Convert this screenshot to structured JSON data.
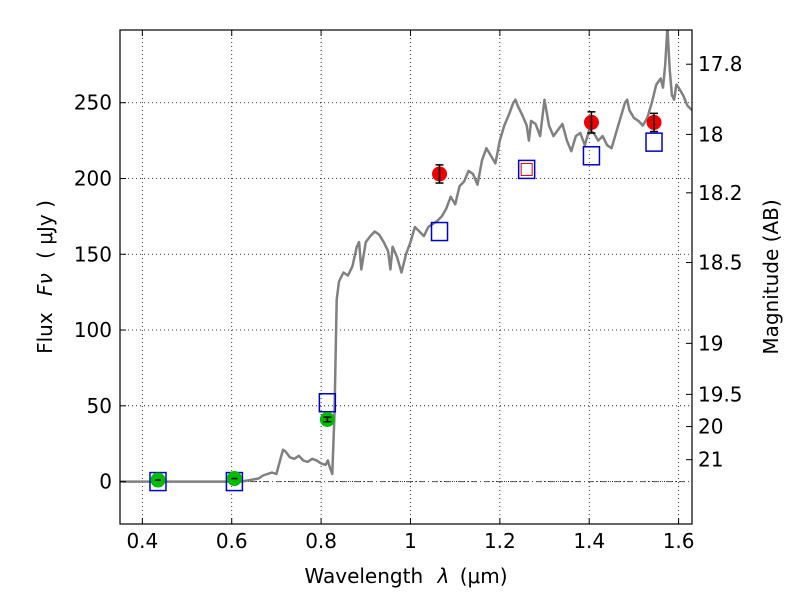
{
  "chart_data": {
    "type": "scatter",
    "xlabel_prefix": "Wavelength",
    "xlabel_symbol": "λ",
    "xlabel_unit": "(μm)",
    "ylabel_prefix": "Flux",
    "ylabel_symbol": "Fν",
    "ylabel_unit": "( μJy )",
    "y2label": "Magnitude (AB)",
    "xlim": [
      0.35,
      1.63
    ],
    "ylim": [
      -28,
      298
    ],
    "grid": true,
    "x_ticks": [
      0.4,
      0.6,
      0.8,
      1.0,
      1.2,
      1.4,
      1.6
    ],
    "x_tick_labels": [
      "0.4",
      "0.6",
      "0.8",
      "1",
      "1.2",
      "1.4",
      "1.6"
    ],
    "y_ticks": [
      0,
      50,
      100,
      150,
      200,
      250
    ],
    "y_tick_labels": [
      "0",
      "50",
      "100",
      "150",
      "200",
      "250"
    ],
    "mag_ticks": [
      17.8,
      18,
      18.2,
      18.5,
      19,
      19.5,
      20,
      21
    ],
    "mag_tick_labels": [
      "17.8",
      "18",
      "18.2",
      "18.5",
      "19",
      "19.5",
      "20",
      "21"
    ],
    "colors": {
      "spectrum": "#808080",
      "model_box": "#0000cc",
      "model_box_inner": "#cc0000",
      "observed_nir": "#ee0000",
      "observed_optical": "#00bb00",
      "zero_line": "#555555"
    },
    "spectrum": [
      [
        0.35,
        0
      ],
      [
        0.55,
        0
      ],
      [
        0.62,
        0
      ],
      [
        0.64,
        1
      ],
      [
        0.66,
        2
      ],
      [
        0.67,
        4
      ],
      [
        0.68,
        5
      ],
      [
        0.69,
        6
      ],
      [
        0.7,
        5
      ],
      [
        0.71,
        16
      ],
      [
        0.715,
        21
      ],
      [
        0.72,
        20
      ],
      [
        0.73,
        16
      ],
      [
        0.74,
        15
      ],
      [
        0.75,
        17
      ],
      [
        0.76,
        14
      ],
      [
        0.77,
        13
      ],
      [
        0.78,
        15
      ],
      [
        0.79,
        14
      ],
      [
        0.8,
        12
      ],
      [
        0.81,
        11
      ],
      [
        0.815,
        14
      ],
      [
        0.82,
        9
      ],
      [
        0.825,
        5
      ],
      [
        0.83,
        45
      ],
      [
        0.835,
        120
      ],
      [
        0.84,
        132
      ],
      [
        0.85,
        138
      ],
      [
        0.86,
        136
      ],
      [
        0.87,
        142
      ],
      [
        0.88,
        155
      ],
      [
        0.885,
        158
      ],
      [
        0.89,
        140
      ],
      [
        0.9,
        158
      ],
      [
        0.91,
        162
      ],
      [
        0.92,
        165
      ],
      [
        0.93,
        163
      ],
      [
        0.94,
        158
      ],
      [
        0.95,
        152
      ],
      [
        0.955,
        140
      ],
      [
        0.96,
        155
      ],
      [
        0.97,
        148
      ],
      [
        0.98,
        138
      ],
      [
        0.99,
        150
      ],
      [
        1.0,
        158
      ],
      [
        1.01,
        168
      ],
      [
        1.02,
        165
      ],
      [
        1.03,
        162
      ],
      [
        1.04,
        168
      ],
      [
        1.05,
        170
      ],
      [
        1.06,
        172
      ],
      [
        1.07,
        175
      ],
      [
        1.08,
        180
      ],
      [
        1.09,
        188
      ],
      [
        1.1,
        183
      ],
      [
        1.11,
        195
      ],
      [
        1.12,
        198
      ],
      [
        1.13,
        205
      ],
      [
        1.14,
        203
      ],
      [
        1.15,
        196
      ],
      [
        1.16,
        212
      ],
      [
        1.17,
        220
      ],
      [
        1.18,
        215
      ],
      [
        1.19,
        210
      ],
      [
        1.2,
        225
      ],
      [
        1.21,
        235
      ],
      [
        1.22,
        242
      ],
      [
        1.23,
        250
      ],
      [
        1.235,
        252
      ],
      [
        1.24,
        248
      ],
      [
        1.25,
        242
      ],
      [
        1.26,
        235
      ],
      [
        1.265,
        225
      ],
      [
        1.27,
        238
      ],
      [
        1.28,
        236
      ],
      [
        1.29,
        228
      ],
      [
        1.3,
        252
      ],
      [
        1.31,
        235
      ],
      [
        1.32,
        228
      ],
      [
        1.33,
        232
      ],
      [
        1.34,
        236
      ],
      [
        1.35,
        225
      ],
      [
        1.36,
        218
      ],
      [
        1.37,
        228
      ],
      [
        1.38,
        230
      ],
      [
        1.39,
        222
      ],
      [
        1.4,
        232
      ],
      [
        1.41,
        230
      ],
      [
        1.42,
        225
      ],
      [
        1.43,
        228
      ],
      [
        1.44,
        222
      ],
      [
        1.45,
        220
      ],
      [
        1.46,
        230
      ],
      [
        1.47,
        240
      ],
      [
        1.48,
        250
      ],
      [
        1.485,
        252
      ],
      [
        1.49,
        245
      ],
      [
        1.5,
        240
      ],
      [
        1.51,
        238
      ],
      [
        1.52,
        235
      ],
      [
        1.53,
        240
      ],
      [
        1.54,
        250
      ],
      [
        1.55,
        262
      ],
      [
        1.56,
        266
      ],
      [
        1.565,
        260
      ],
      [
        1.57,
        275
      ],
      [
        1.575,
        300
      ],
      [
        1.58,
        272
      ],
      [
        1.585,
        255
      ],
      [
        1.59,
        252
      ],
      [
        1.595,
        262
      ],
      [
        1.6,
        260
      ],
      [
        1.61,
        255
      ],
      [
        1.62,
        248
      ],
      [
        1.63,
        245
      ]
    ],
    "model_boxes": [
      {
        "x": 0.435,
        "y": 0
      },
      {
        "x": 0.606,
        "y": 0
      },
      {
        "x": 0.814,
        "y": 52
      },
      {
        "x": 1.065,
        "y": 165
      },
      {
        "x": 1.26,
        "y": 206
      },
      {
        "x": 1.405,
        "y": 215
      },
      {
        "x": 1.545,
        "y": 224
      }
    ],
    "observed": [
      {
        "x": 0.435,
        "y": 1,
        "err": 0,
        "color": "observed_optical"
      },
      {
        "x": 0.606,
        "y": 2,
        "err": 0,
        "color": "observed_optical"
      },
      {
        "x": 0.814,
        "y": 41,
        "err": 1.5,
        "color": "observed_optical"
      },
      {
        "x": 1.065,
        "y": 203,
        "err": 6,
        "color": "observed_nir"
      },
      {
        "x": 1.405,
        "y": 237,
        "err": 7,
        "color": "observed_nir"
      },
      {
        "x": 1.545,
        "y": 237,
        "err": 6,
        "color": "observed_nir"
      }
    ]
  }
}
